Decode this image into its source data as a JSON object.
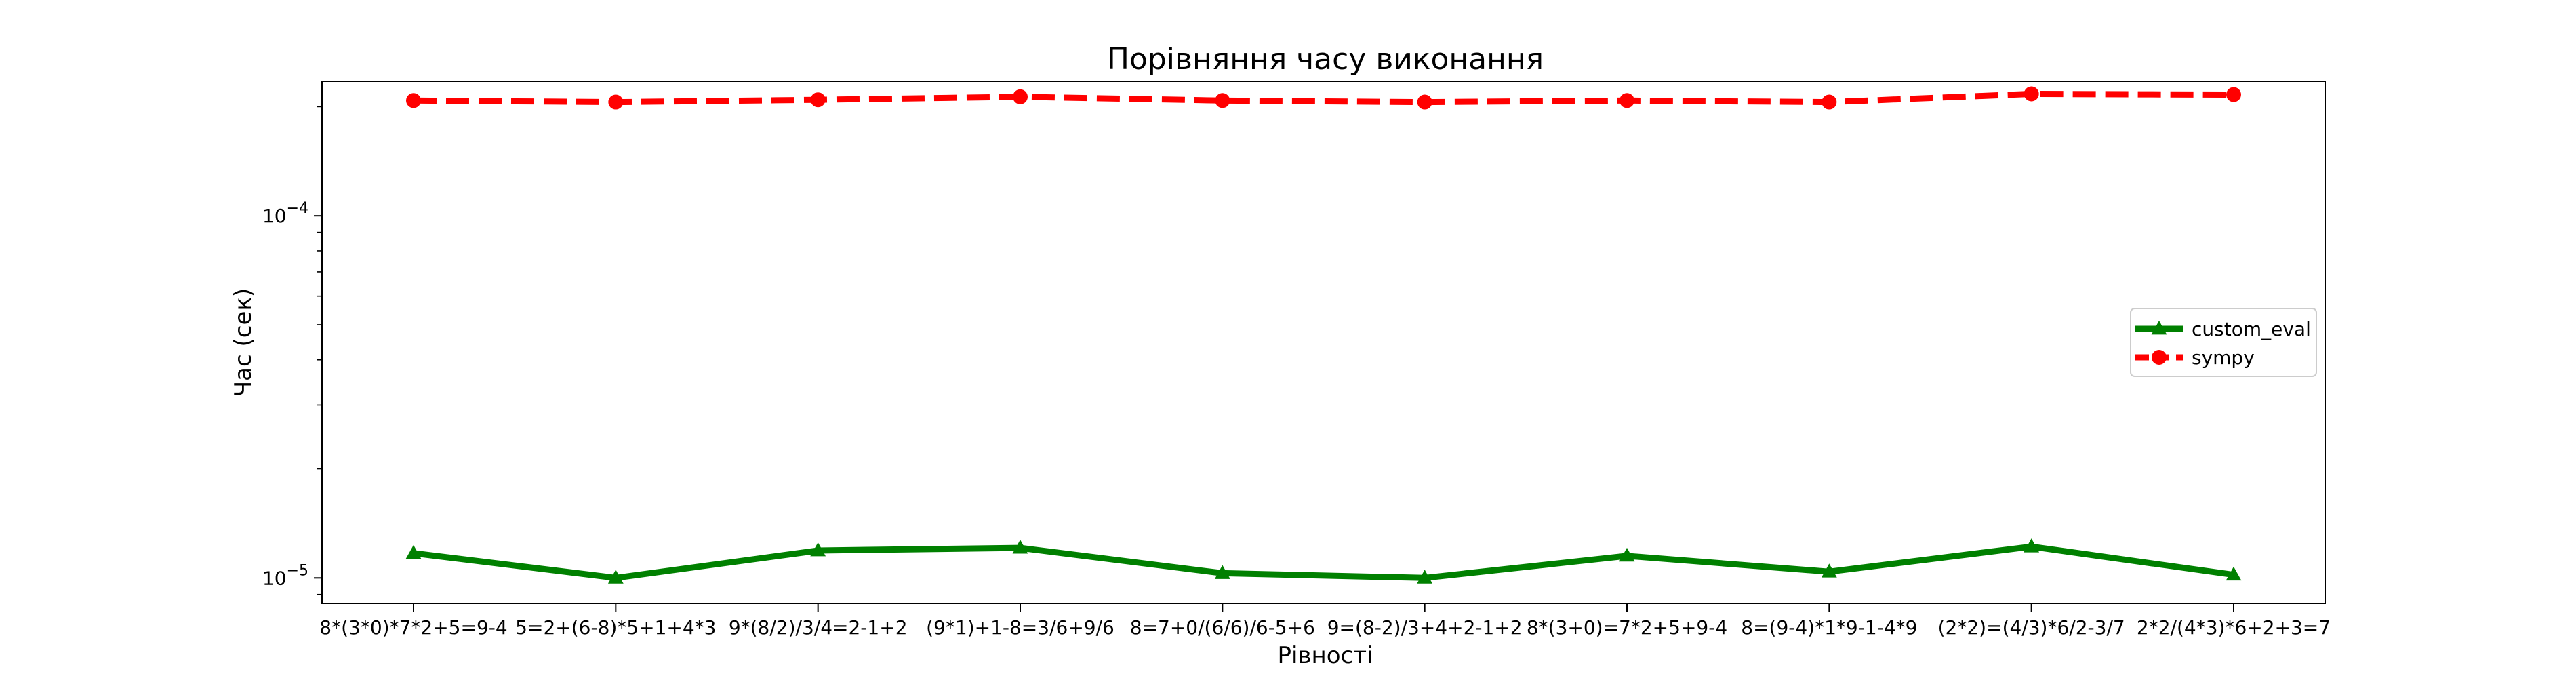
{
  "chart_data": {
    "type": "line",
    "title": "Порівняння часу виконання",
    "xlabel": "Рівності",
    "ylabel": "Час (сек)",
    "yscale": "log",
    "ylim": [
      8.5e-06,
      0.000235
    ],
    "yticks": [
      {
        "value": 1e-05,
        "base": "10",
        "exp": "−5"
      },
      {
        "value": 0.0001,
        "base": "10",
        "exp": "−4"
      }
    ],
    "categories": [
      "8*(3*0)*7*2+5=9-4",
      "5=2+(6-8)*5+1+4*3",
      "9*(8/2)/3/4=2-1+2",
      "(9*1)+1-8=3/6+9/6",
      "8=7+0/(6/6)/6-5+6",
      "9=(8-2)/3+4+2-1+2",
      "8*(3+0)=7*2+5+9-4",
      "8=(9-4)*1*9-1-4*9",
      "(2*2)=(4/3)*6/2-3/7",
      "2*2/(4*3)*6+2+3=7"
    ],
    "series": [
      {
        "name": "custom_eval",
        "color": "#008000",
        "marker": "triangle",
        "linestyle": "solid",
        "values": [
          1.17e-05,
          1e-05,
          1.19e-05,
          1.21e-05,
          1.03e-05,
          1e-05,
          1.15e-05,
          1.04e-05,
          1.22e-05,
          1.02e-05
        ]
      },
      {
        "name": "sympy",
        "color": "#ff0000",
        "marker": "circle",
        "linestyle": "dashed",
        "values": [
          0.000208,
          0.000206,
          0.000209,
          0.000213,
          0.000208,
          0.000206,
          0.000208,
          0.000206,
          0.000217,
          0.000216
        ]
      }
    ],
    "legend_position": "center-right",
    "grid": false
  }
}
